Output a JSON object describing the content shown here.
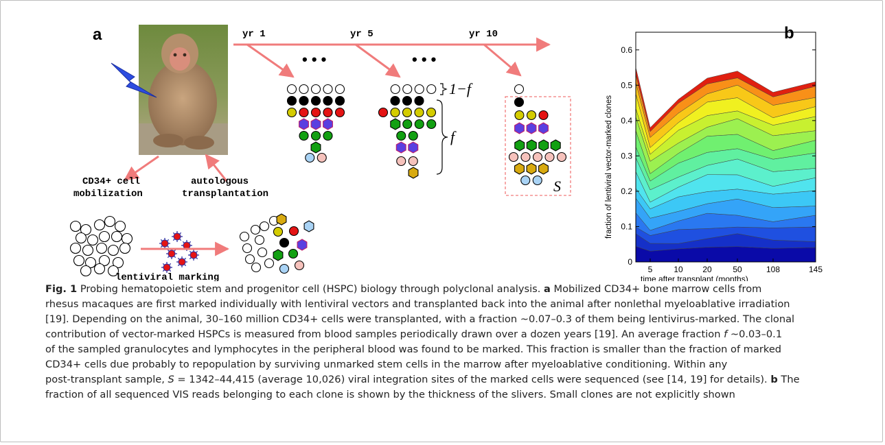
{
  "panel_a": {
    "label": "a",
    "years": [
      "yr 1",
      "yr 5",
      "yr 10"
    ],
    "ellipsis": "• • •",
    "unmarked_fraction_label": "1−f",
    "marked_fraction_label": "f",
    "sample_label": "S",
    "mobilization_label": [
      "CD34+ cell",
      "mobilization"
    ],
    "transplant_label": [
      "autologous",
      "transplantation"
    ],
    "marking_label": "lentiviral marking",
    "arrow_color": "#f07b7b",
    "clone_colors": {
      "unmarked": "#ffffff",
      "black": "#000000",
      "yellow": "#d4cc00",
      "red": "#e41414",
      "blue": "#5a3fe0",
      "green": "#12a012",
      "lightblue": "#a9d3f5",
      "pink": "#f6c2bc",
      "gold": "#d8aa10"
    }
  },
  "panel_b": {
    "label": "b",
    "ylabel": "fraction of lentiviral vector-marked clones",
    "xlabel": "time after transplant (months)"
  },
  "chart_data": {
    "type": "area",
    "xlabel": "time after transplant (months)",
    "ylabel": "fraction of lentiviral vector-marked clones",
    "x": [
      "2",
      "5",
      "10",
      "20",
      "50",
      "108",
      "145"
    ],
    "xticks": [
      "5",
      "10",
      "20",
      "50",
      "108",
      "145"
    ],
    "yticks": [
      "0",
      "0.1",
      "0.2",
      "0.3",
      "0.4",
      "0.5",
      "0.6"
    ],
    "ylim": [
      0,
      0.65
    ],
    "total": [
      0.55,
      0.38,
      0.46,
      0.52,
      0.54,
      0.48,
      0.51
    ],
    "layer_top_fractions": [
      0.08,
      0.13,
      0.19,
      0.25,
      0.32,
      0.39,
      0.46,
      0.53,
      0.6,
      0.67,
      0.74,
      0.8,
      0.86,
      0.92,
      0.97,
      1.0
    ],
    "layer_colors": [
      "#0a0aa8",
      "#1530c8",
      "#1f50e0",
      "#2a78f0",
      "#34a4f8",
      "#3cc8f6",
      "#50e4ee",
      "#5cf0cc",
      "#60f0a0",
      "#70f070",
      "#9cf050",
      "#c8f030",
      "#f0f020",
      "#f8c818",
      "#f89018",
      "#e02010"
    ]
  },
  "caption": {
    "fig_label": "Fig. 1",
    "title": "Probing hematopoietic stem and progenitor cell (HSPC) biology through polyclonal analysis.",
    "part_a_label": "a",
    "line1_rest": "Mobilized CD34+ bone marrow cells from",
    "line2": "rhesus macaques are first marked individually with lentiviral vectors and transplanted back into the animal after nonlethal myeloablative irradiation",
    "line3": "[19]. Depending on the animal, 30–160 million CD34+ cells were transplanted, with a fraction ∼0.07–0.3 of them being lentivirus-marked. The clonal",
    "line4": "contribution of vector-marked HSPCs is measured from blood samples periodically drawn over a dozen years [19]. An average fraction",
    "line4_f": "f",
    "line4_end": "∼0.03–0.1",
    "line5": "of the sampled granulocytes and lymphocytes in the peripheral blood was found to be marked. This fraction is smaller than the fraction of marked",
    "line6": "CD34+ cells due probably to repopulation by surviving unmarked stem cells in the marrow after myeloablative conditioning. Within any",
    "line7_start": "post-transplant sample,",
    "line7_S": "S",
    "line7_rest": "= 1342–44,415 (average 10,026) viral integration sites of the marked cells were sequenced (see [14, 19] for details).",
    "part_b_label": "b",
    "part_b_word": "The",
    "line8": "fraction of all sequenced VIS reads belonging to each clone is shown by the thickness of the slivers. Small clones are not explicitly shown"
  }
}
